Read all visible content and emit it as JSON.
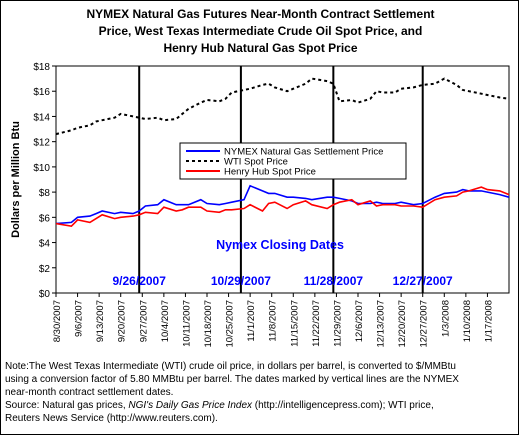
{
  "title_lines": [
    "NYMEX Natural Gas Futures Near-Month Contract Settlement",
    "Price, West Texas Intermediate Crude Oil Spot Price, and",
    "Henry Hub Natural Gas Spot Price"
  ],
  "note": {
    "line1": "Note:The West Texas Intermediate (WTI) crude oil price, in dollars per barrel,  is converted to $/MMBtu",
    "line2": "using a conversion factor of 5.80 MMBtu per barrel.  The dates marked by vertical lines are the NYMEX",
    "line3": "near-month contract settlement dates.",
    "source_prefix": "Source: Natural gas prices, ",
    "source_italic": "NGI's Daily Gas Price Index",
    "source_suffix": " (http://intelligencepress.com); WTI price,",
    "line5": "Reuters News Service (http://www.reuters.com)."
  },
  "colors": {
    "nymex": "#0000ff",
    "wti": "#000000",
    "henry_hub": "#ff0000",
    "closing_annotation": "#0000ff"
  },
  "chart_data": {
    "type": "line",
    "ylabel": "Dollars per Million Btu",
    "ylim": [
      0,
      18
    ],
    "yticks": [
      "$0",
      "$2",
      "$4",
      "$6",
      "$8",
      "$10",
      "$12",
      "$14",
      "$16",
      "$18"
    ],
    "xlim": [
      "2007-08-30",
      "2008-01-24"
    ],
    "xticks": [
      "8/30/2007",
      "9/6/2007",
      "9/13/2007",
      "9/20/2007",
      "9/27/2007",
      "10/4/2007",
      "10/11/2007",
      "10/18/2007",
      "10/25/2007",
      "11/1/2007",
      "11/8/2007",
      "11/15/2007",
      "11/22/2007",
      "11/29/2007",
      "12/6/2007",
      "12/13/2007",
      "12/20/2007",
      "12/27/2007",
      "1/3/2008",
      "1/10/2008",
      "1/17/2008"
    ],
    "grid": false,
    "legend": {
      "placement": "center",
      "entries": [
        "NYMEX Natural Gas Settlement Price",
        "WTI Spot Price",
        "Henry Hub Spot Price"
      ]
    },
    "closing_dates_label": "Nymex Closing Dates",
    "closing_dates": [
      "9/26/2007",
      "10/29/2007",
      "11/28/2007",
      "12/27/2007"
    ],
    "series": [
      {
        "name": "NYMEX Natural Gas Settlement Price",
        "style": "solid",
        "points": [
          [
            "2007-08-30",
            5.5
          ],
          [
            "2007-09-04",
            5.6
          ],
          [
            "2007-09-06",
            6.0
          ],
          [
            "2007-09-10",
            6.1
          ],
          [
            "2007-09-12",
            6.3
          ],
          [
            "2007-09-14",
            6.5
          ],
          [
            "2007-09-18",
            6.3
          ],
          [
            "2007-09-20",
            6.4
          ],
          [
            "2007-09-24",
            6.3
          ],
          [
            "2007-09-26",
            6.5
          ],
          [
            "2007-09-28",
            6.9
          ],
          [
            "2007-10-02",
            7.0
          ],
          [
            "2007-10-04",
            7.4
          ],
          [
            "2007-10-08",
            7.0
          ],
          [
            "2007-10-10",
            7.0
          ],
          [
            "2007-10-12",
            7.0
          ],
          [
            "2007-10-16",
            7.4
          ],
          [
            "2007-10-18",
            7.1
          ],
          [
            "2007-10-22",
            7.0
          ],
          [
            "2007-10-24",
            7.1
          ],
          [
            "2007-10-26",
            7.2
          ],
          [
            "2007-10-30",
            7.4
          ],
          [
            "2007-11-01",
            8.5
          ],
          [
            "2007-11-05",
            8.1
          ],
          [
            "2007-11-07",
            7.9
          ],
          [
            "2007-11-09",
            7.9
          ],
          [
            "2007-11-13",
            7.6
          ],
          [
            "2007-11-15",
            7.6
          ],
          [
            "2007-11-19",
            7.5
          ],
          [
            "2007-11-21",
            7.4
          ],
          [
            "2007-11-26",
            7.6
          ],
          [
            "2007-11-28",
            7.6
          ],
          [
            "2007-11-30",
            7.5
          ],
          [
            "2007-12-04",
            7.3
          ],
          [
            "2007-12-06",
            7.1
          ],
          [
            "2007-12-10",
            7.1
          ],
          [
            "2007-12-12",
            7.2
          ],
          [
            "2007-12-14",
            7.1
          ],
          [
            "2007-12-18",
            7.1
          ],
          [
            "2007-12-20",
            7.2
          ],
          [
            "2007-12-24",
            7.0
          ],
          [
            "2007-12-27",
            7.1
          ],
          [
            "2007-12-31",
            7.6
          ],
          [
            "2008-01-03",
            7.9
          ],
          [
            "2008-01-07",
            8.0
          ],
          [
            "2008-01-09",
            8.2
          ],
          [
            "2008-01-11",
            8.1
          ],
          [
            "2008-01-15",
            8.1
          ],
          [
            "2008-01-17",
            8.0
          ],
          [
            "2008-01-21",
            7.8
          ],
          [
            "2008-01-24",
            7.6
          ]
        ]
      },
      {
        "name": "WTI Spot Price",
        "style": "dashed",
        "points": [
          [
            "2007-08-30",
            12.6
          ],
          [
            "2007-09-04",
            12.9
          ],
          [
            "2007-09-06",
            13.1
          ],
          [
            "2007-09-10",
            13.3
          ],
          [
            "2007-09-12",
            13.6
          ],
          [
            "2007-09-14",
            13.7
          ],
          [
            "2007-09-18",
            13.9
          ],
          [
            "2007-09-20",
            14.2
          ],
          [
            "2007-09-24",
            14.0
          ],
          [
            "2007-09-26",
            13.9
          ],
          [
            "2007-09-28",
            13.8
          ],
          [
            "2007-10-02",
            13.9
          ],
          [
            "2007-10-04",
            13.7
          ],
          [
            "2007-10-08",
            13.8
          ],
          [
            "2007-10-10",
            14.2
          ],
          [
            "2007-10-12",
            14.6
          ],
          [
            "2007-10-16",
            15.1
          ],
          [
            "2007-10-18",
            15.3
          ],
          [
            "2007-10-22",
            15.2
          ],
          [
            "2007-10-24",
            15.4
          ],
          [
            "2007-10-26",
            15.9
          ],
          [
            "2007-10-30",
            16.1
          ],
          [
            "2007-11-01",
            16.2
          ],
          [
            "2007-11-05",
            16.5
          ],
          [
            "2007-11-07",
            16.6
          ],
          [
            "2007-11-09",
            16.3
          ],
          [
            "2007-11-13",
            16.0
          ],
          [
            "2007-11-15",
            16.2
          ],
          [
            "2007-11-19",
            16.6
          ],
          [
            "2007-11-21",
            17.0
          ],
          [
            "2007-11-26",
            16.8
          ],
          [
            "2007-11-28",
            16.6
          ],
          [
            "2007-11-30",
            15.2
          ],
          [
            "2007-12-04",
            15.3
          ],
          [
            "2007-12-06",
            15.1
          ],
          [
            "2007-12-10",
            15.4
          ],
          [
            "2007-12-12",
            16.0
          ],
          [
            "2007-12-14",
            15.9
          ],
          [
            "2007-12-18",
            15.9
          ],
          [
            "2007-12-20",
            16.2
          ],
          [
            "2007-12-24",
            16.3
          ],
          [
            "2007-12-27",
            16.5
          ],
          [
            "2007-12-31",
            16.6
          ],
          [
            "2008-01-03",
            17.0
          ],
          [
            "2008-01-07",
            16.5
          ],
          [
            "2008-01-09",
            16.1
          ],
          [
            "2008-01-11",
            16.0
          ],
          [
            "2008-01-15",
            15.8
          ],
          [
            "2008-01-17",
            15.7
          ],
          [
            "2008-01-21",
            15.5
          ],
          [
            "2008-01-24",
            15.4
          ]
        ]
      },
      {
        "name": "Henry Hub Spot Price",
        "style": "solid",
        "points": [
          [
            "2007-08-30",
            5.5
          ],
          [
            "2007-09-04",
            5.3
          ],
          [
            "2007-09-06",
            5.8
          ],
          [
            "2007-09-10",
            5.6
          ],
          [
            "2007-09-12",
            5.9
          ],
          [
            "2007-09-14",
            6.2
          ],
          [
            "2007-09-18",
            5.9
          ],
          [
            "2007-09-20",
            6.0
          ],
          [
            "2007-09-24",
            6.1
          ],
          [
            "2007-09-26",
            6.2
          ],
          [
            "2007-09-28",
            6.4
          ],
          [
            "2007-10-02",
            6.3
          ],
          [
            "2007-10-04",
            6.8
          ],
          [
            "2007-10-08",
            6.5
          ],
          [
            "2007-10-10",
            6.6
          ],
          [
            "2007-10-12",
            6.8
          ],
          [
            "2007-10-16",
            6.8
          ],
          [
            "2007-10-18",
            6.5
          ],
          [
            "2007-10-22",
            6.4
          ],
          [
            "2007-10-24",
            6.6
          ],
          [
            "2007-10-26",
            6.6
          ],
          [
            "2007-10-30",
            6.7
          ],
          [
            "2007-11-01",
            7.0
          ],
          [
            "2007-11-05",
            6.5
          ],
          [
            "2007-11-07",
            7.1
          ],
          [
            "2007-11-09",
            7.2
          ],
          [
            "2007-11-13",
            6.7
          ],
          [
            "2007-11-15",
            7.0
          ],
          [
            "2007-11-19",
            7.3
          ],
          [
            "2007-11-21",
            7.0
          ],
          [
            "2007-11-26",
            6.7
          ],
          [
            "2007-11-28",
            7.0
          ],
          [
            "2007-11-30",
            7.2
          ],
          [
            "2007-12-04",
            7.4
          ],
          [
            "2007-12-06",
            7.0
          ],
          [
            "2007-12-10",
            7.3
          ],
          [
            "2007-12-12",
            6.9
          ],
          [
            "2007-12-14",
            7.0
          ],
          [
            "2007-12-18",
            7.0
          ],
          [
            "2007-12-20",
            6.9
          ],
          [
            "2007-12-24",
            6.9
          ],
          [
            "2007-12-27",
            6.8
          ],
          [
            "2007-12-31",
            7.4
          ],
          [
            "2008-01-03",
            7.6
          ],
          [
            "2008-01-07",
            7.7
          ],
          [
            "2008-01-09",
            8.0
          ],
          [
            "2008-01-11",
            8.1
          ],
          [
            "2008-01-15",
            8.4
          ],
          [
            "2008-01-17",
            8.2
          ],
          [
            "2008-01-21",
            8.1
          ],
          [
            "2008-01-24",
            7.8
          ]
        ]
      }
    ]
  }
}
